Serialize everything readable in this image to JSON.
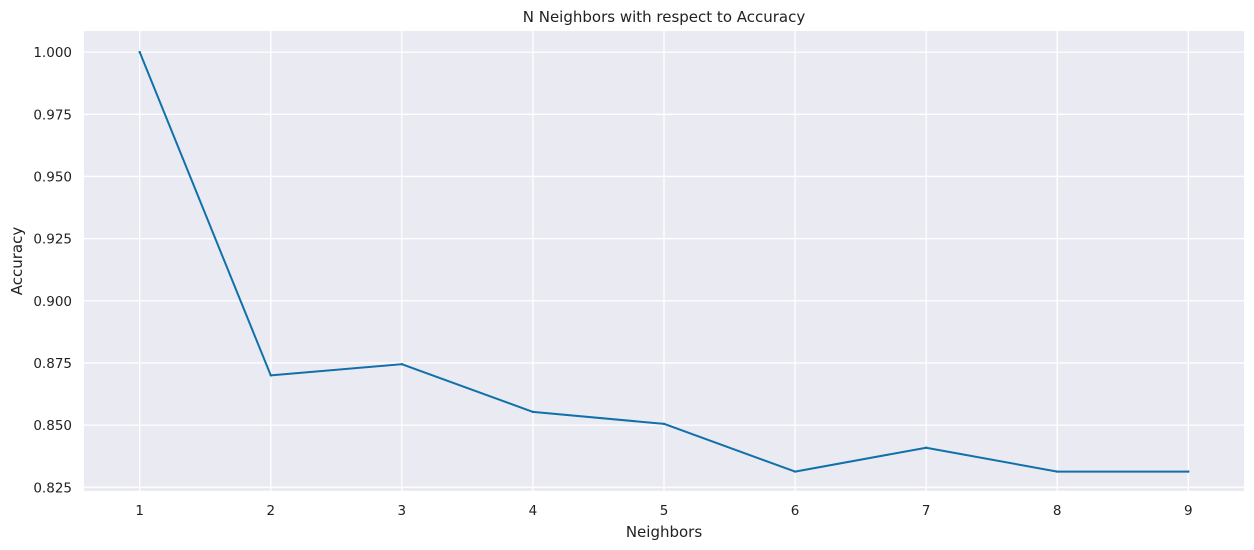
{
  "chart_data": {
    "type": "line",
    "title": "N Neighbors with respect to Accuracy",
    "xlabel": "Neighbors",
    "ylabel": "Accuracy",
    "x": [
      1,
      2,
      3,
      4,
      5,
      6,
      7,
      8,
      9
    ],
    "series": [
      {
        "values": [
          1.0,
          0.87,
          0.8745,
          0.8553,
          0.8505,
          0.8313,
          0.8409,
          0.8313,
          0.8313
        ]
      }
    ],
    "xticks": [
      "1",
      "2",
      "3",
      "4",
      "5",
      "6",
      "7",
      "8",
      "9"
    ],
    "yticks": [
      "0.825",
      "0.850",
      "0.875",
      "0.900",
      "0.925",
      "0.950",
      "0.975",
      "1.000"
    ],
    "ylim": [
      0.8235,
      1.0085
    ],
    "xlim": [
      0.575,
      9.425
    ],
    "grid": true,
    "colors": {
      "line": "#1170aa",
      "background": "#eaeaf2",
      "grid": "#ffffff"
    }
  }
}
